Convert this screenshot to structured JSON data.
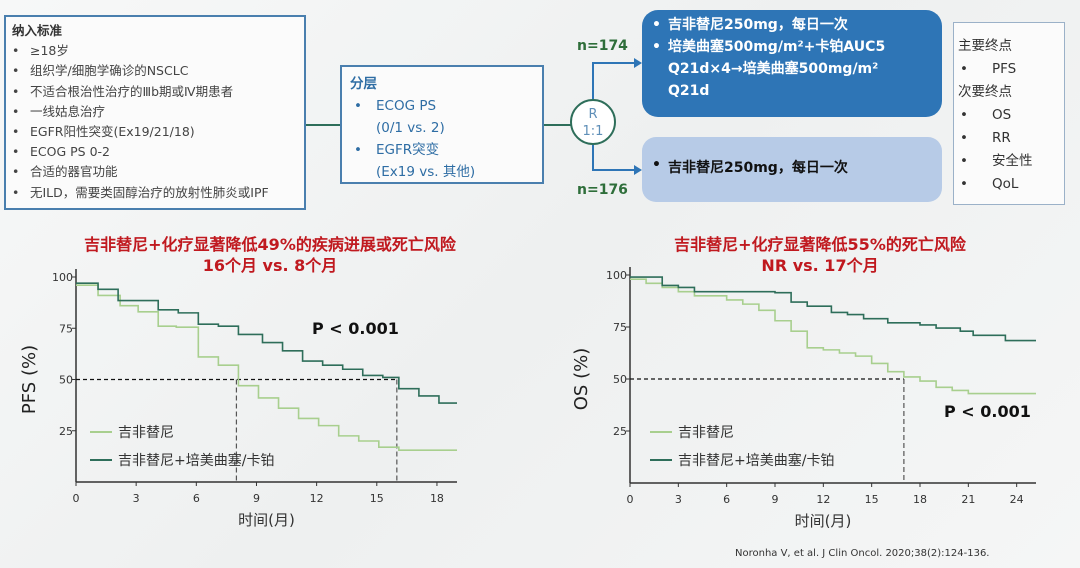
{
  "inclusion": {
    "title": "纳入标准",
    "items": [
      "≥18岁",
      "组织学/细胞学确诊的NSCLC",
      "不适合根治性治疗的Ⅲb期或Ⅳ期患者",
      "一线姑息治疗",
      "EGFR阳性突变(Ex19/21/18)",
      "ECOG PS 0-2",
      "合适的器官功能",
      "无ILD，需要类固醇治疗的放射性肺炎或IPF"
    ]
  },
  "stratification": {
    "title": "分层",
    "items": [
      {
        "text": "ECOG PS",
        "bullet": true
      },
      {
        "text": "(0/1 vs. 2)",
        "bullet": false
      },
      {
        "text": "EGFR突变",
        "bullet": true
      },
      {
        "text": "(Ex19 vs. 其他)",
        "bullet": false
      }
    ]
  },
  "randomization": {
    "label": "R",
    "ratio": "1:1",
    "n_top": "n=174",
    "n_bottom": "n=176"
  },
  "arm_combo": {
    "lines": [
      {
        "text": "吉非替尼250mg，每日一次",
        "bullet": true
      },
      {
        "text": "培美曲塞500mg/m²+卡铂AUC5",
        "bullet": true
      },
      {
        "text": "Q21d×4→培美曲塞500mg/m²",
        "bullet": false
      },
      {
        "text": "Q21d",
        "bullet": false
      }
    ]
  },
  "arm_mono": {
    "text": "吉非替尼250mg，每日一次"
  },
  "endpoints": {
    "primary_title": "主要终点",
    "primary": [
      "PFS"
    ],
    "secondary_title": "次要终点",
    "secondary": [
      "OS",
      "RR",
      "安全性",
      "QoL"
    ]
  },
  "colors": {
    "gef": "#a8cf8e",
    "combo": "#2e6e5a",
    "title": "#c0191f",
    "arm1": "#2e75b6",
    "arm2": "#b7cbe7"
  },
  "chart_data": [
    {
      "type": "line",
      "title": "吉非替尼+化疗显著降低49%的疾病进展或死亡风险",
      "subtitle": "16个月 vs. 8个月",
      "xlabel": "时间(月)",
      "ylabel": "PFS (%)",
      "xlim": [
        0,
        19
      ],
      "ylim": [
        0,
        100
      ],
      "xticks": [
        "0",
        "3",
        "6",
        "9",
        "12",
        "15",
        "18"
      ],
      "yticks": [
        "100",
        "75",
        "50",
        "25"
      ],
      "pvalue": "P < 0.001",
      "legend": "bottom-left",
      "medians": [
        8,
        16
      ],
      "series": [
        {
          "name": "吉非替尼",
          "color": "#a8cf8e",
          "steps": [
            [
              0,
              96
            ],
            [
              1.1,
              91
            ],
            [
              2.2,
              86
            ],
            [
              3.1,
              83
            ],
            [
              4.1,
              76
            ],
            [
              5,
              75.5
            ],
            [
              6.1,
              61
            ],
            [
              7.1,
              57
            ],
            [
              8.1,
              47
            ],
            [
              9.1,
              41
            ],
            [
              10.1,
              36
            ],
            [
              11.1,
              31
            ],
            [
              12.1,
              27.5
            ],
            [
              13.1,
              22.5
            ],
            [
              14.1,
              20
            ],
            [
              15.1,
              17
            ],
            [
              16.1,
              15.5
            ],
            [
              19,
              15.5
            ]
          ]
        },
        {
          "name": "吉非替尼+培美曲塞/卡铂",
          "color": "#2e6e5a",
          "steps": [
            [
              0,
              97
            ],
            [
              1.1,
              94
            ],
            [
              2.1,
              88.5
            ],
            [
              4.1,
              84
            ],
            [
              5.1,
              82.5
            ],
            [
              6.1,
              77
            ],
            [
              7.1,
              76
            ],
            [
              8.1,
              72
            ],
            [
              9.3,
              68
            ],
            [
              10.3,
              64
            ],
            [
              11.3,
              59
            ],
            [
              12.3,
              57
            ],
            [
              13.3,
              55
            ],
            [
              14.3,
              52
            ],
            [
              15.3,
              51
            ],
            [
              16.1,
              45.5
            ],
            [
              17.1,
              42
            ],
            [
              18.1,
              38.5
            ],
            [
              19,
              38.5
            ]
          ]
        }
      ]
    },
    {
      "type": "line",
      "title": "吉非替尼+化疗显著降低55%的死亡风险",
      "subtitle": "NR vs. 17个月",
      "xlabel": "时间(月)",
      "ylabel": "OS (%)",
      "xlim": [
        0,
        25.2
      ],
      "ylim": [
        0,
        100
      ],
      "xticks": [
        "0",
        "3",
        "6",
        "9",
        "12",
        "15",
        "18",
        "21",
        "24"
      ],
      "yticks": [
        "100",
        "75",
        "50",
        "25"
      ],
      "pvalue": "P < 0.001",
      "legend": "bottom-left",
      "medians": [
        17
      ],
      "series": [
        {
          "name": "吉非替尼",
          "color": "#a8cf8e",
          "steps": [
            [
              0,
              98
            ],
            [
              1,
              96
            ],
            [
              2,
              94
            ],
            [
              3,
              92
            ],
            [
              4,
              90
            ],
            [
              6,
              88
            ],
            [
              7,
              86
            ],
            [
              8,
              83
            ],
            [
              9,
              78
            ],
            [
              10,
              73
            ],
            [
              11,
              65
            ],
            [
              12,
              64
            ],
            [
              13,
              62.5
            ],
            [
              14,
              61
            ],
            [
              15,
              57.5
            ],
            [
              16,
              53.5
            ],
            [
              17,
              51
            ],
            [
              18,
              49
            ],
            [
              19,
              46
            ],
            [
              20,
              44.5
            ],
            [
              21,
              43
            ],
            [
              25.2,
              43
            ]
          ]
        },
        {
          "name": "吉非替尼+培美曲塞/卡铂",
          "color": "#2e6e5a",
          "steps": [
            [
              0,
              99
            ],
            [
              2,
              95
            ],
            [
              3,
              94
            ],
            [
              4,
              92
            ],
            [
              9,
              91.5
            ],
            [
              10,
              87
            ],
            [
              11,
              85
            ],
            [
              12.5,
              82
            ],
            [
              13.5,
              81
            ],
            [
              14.5,
              79
            ],
            [
              16,
              77
            ],
            [
              18,
              76
            ],
            [
              19,
              74.5
            ],
            [
              20.5,
              73
            ],
            [
              21.3,
              71
            ],
            [
              23.3,
              68.5
            ],
            [
              25.2,
              68.5
            ]
          ]
        }
      ]
    }
  ],
  "citation": "Noronha V, et al. J Clin Oncol. 2020;38(2):124-136."
}
